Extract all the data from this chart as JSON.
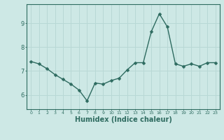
{
  "x": [
    0,
    1,
    2,
    3,
    4,
    5,
    6,
    7,
    8,
    9,
    10,
    11,
    12,
    13,
    14,
    15,
    16,
    17,
    18,
    19,
    20,
    21,
    22,
    23
  ],
  "y": [
    7.4,
    7.3,
    7.1,
    6.85,
    6.65,
    6.45,
    6.2,
    5.75,
    6.5,
    6.45,
    6.6,
    6.7,
    7.05,
    7.35,
    7.35,
    8.65,
    9.4,
    8.85,
    7.3,
    7.2,
    7.3,
    7.2,
    7.35,
    7.35
  ],
  "line_color": "#2e6b60",
  "marker": "D",
  "marker_size": 2.5,
  "background_color": "#cde8e5",
  "grid_color": "#b8d8d5",
  "axis_color": "#2e6b60",
  "tick_color": "#2e6b60",
  "xlabel": "Humidex (Indice chaleur)",
  "xlabel_color": "#2e6b60",
  "xlabel_fontsize": 7,
  "yticks": [
    6,
    7,
    8,
    9
  ],
  "ylim": [
    5.4,
    9.8
  ],
  "xlim": [
    -0.5,
    23.5
  ],
  "line_width": 1.0
}
